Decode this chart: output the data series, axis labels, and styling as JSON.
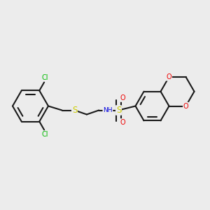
{
  "bg_color": "#ececec",
  "bond_color": "#1a1a1a",
  "line_width": 1.5,
  "atom_colors": {
    "Cl": "#00bb00",
    "S": "#cccc00",
    "N": "#0000dd",
    "O": "#ee0000"
  },
  "font_size": 7.0,
  "aromatic_inner_ratio": 0.76,
  "aromatic_shorten": 0.15
}
